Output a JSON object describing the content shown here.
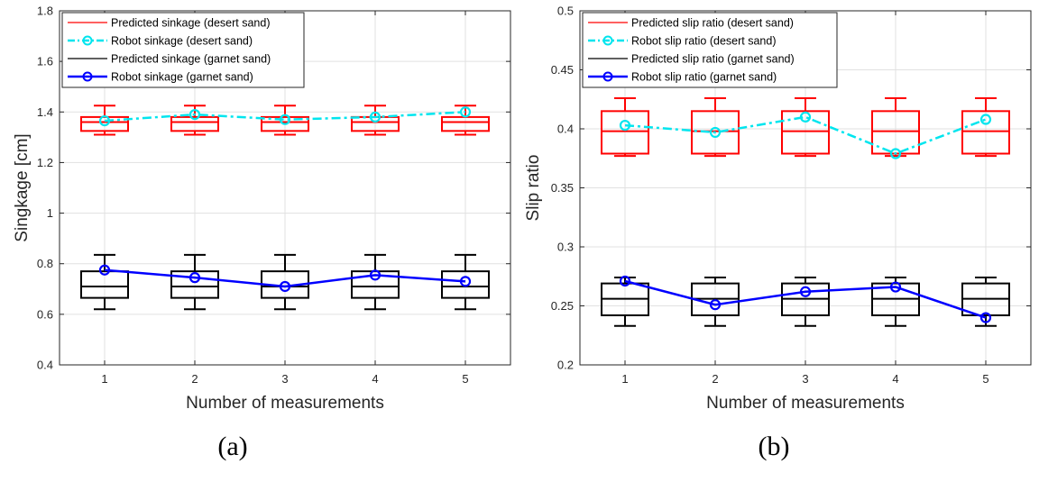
{
  "chart_data": [
    {
      "type": "box",
      "panel_caption": "(a)",
      "xlabel": "Number of measurements",
      "ylabel": "Singkage [cm]",
      "categories": [
        "1",
        "2",
        "3",
        "4",
        "5"
      ],
      "xlim": [
        0.5,
        5.5
      ],
      "ylim": [
        0.4,
        1.8
      ],
      "yticks": [
        "0.4",
        "0.6",
        "0.8",
        "1",
        "1.2",
        "1.4",
        "1.6",
        "1.8"
      ],
      "grid": true,
      "legend_position": "top-left",
      "boxes": [
        {
          "name": "Predicted sinkage (desert sand)",
          "color": "#ff0000",
          "stats": {
            "min": 1.31,
            "q1": 1.325,
            "median": 1.36,
            "q3": 1.38,
            "max": 1.425
          }
        },
        {
          "name": "Predicted sinkage (garnet sand)",
          "color": "#000000",
          "stats": {
            "min": 0.62,
            "q1": 0.665,
            "median": 0.71,
            "q3": 0.77,
            "max": 0.835
          }
        }
      ],
      "series": [
        {
          "name": "Robot sinkage (desert sand)",
          "color": "#00e5ee",
          "style": "dashdot",
          "values": [
            1.365,
            1.39,
            1.37,
            1.38,
            1.4
          ]
        },
        {
          "name": "Robot sinkage (garnet sand)",
          "color": "#0000ff",
          "style": "solid",
          "values": [
            0.775,
            0.745,
            0.71,
            0.755,
            0.73
          ]
        }
      ],
      "legend": [
        "Predicted sinkage (desert sand)",
        "Robot sinkage (desert sand)",
        "Predicted sinkage (garnet sand)",
        "Robot sinkage (garnet sand)"
      ]
    },
    {
      "type": "box",
      "panel_caption": "(b)",
      "xlabel": "Number of measurements",
      "ylabel": "Slip ratio",
      "categories": [
        "1",
        "2",
        "3",
        "4",
        "5"
      ],
      "xlim": [
        0.5,
        5.5
      ],
      "ylim": [
        0.2,
        0.5
      ],
      "yticks": [
        "0.2",
        "0.25",
        "0.3",
        "0.35",
        "0.4",
        "0.45",
        "0.5"
      ],
      "grid": true,
      "legend_position": "top-left",
      "boxes": [
        {
          "name": "Predicted slip ratio (desert sand)",
          "color": "#ff0000",
          "stats": {
            "min": 0.377,
            "q1": 0.379,
            "median": 0.398,
            "q3": 0.415,
            "max": 0.426
          }
        },
        {
          "name": "Predicted slip ratio (garnet sand)",
          "color": "#000000",
          "stats": {
            "min": 0.233,
            "q1": 0.242,
            "median": 0.256,
            "q3": 0.269,
            "max": 0.274
          }
        }
      ],
      "series": [
        {
          "name": "Robot slip ratio (desert sand)",
          "color": "#00e5ee",
          "style": "dashdot",
          "values": [
            0.403,
            0.397,
            0.41,
            0.379,
            0.408
          ]
        },
        {
          "name": "Robot slip ratio (garnet sand)",
          "color": "#0000ff",
          "style": "solid",
          "values": [
            0.271,
            0.251,
            0.262,
            0.266,
            0.24
          ]
        }
      ],
      "legend": [
        "Predicted slip ratio (desert sand)",
        "Robot slip ratio (desert sand)",
        "Predicted slip ratio (garnet sand)",
        "Robot slip ratio (garnet sand)"
      ]
    }
  ]
}
